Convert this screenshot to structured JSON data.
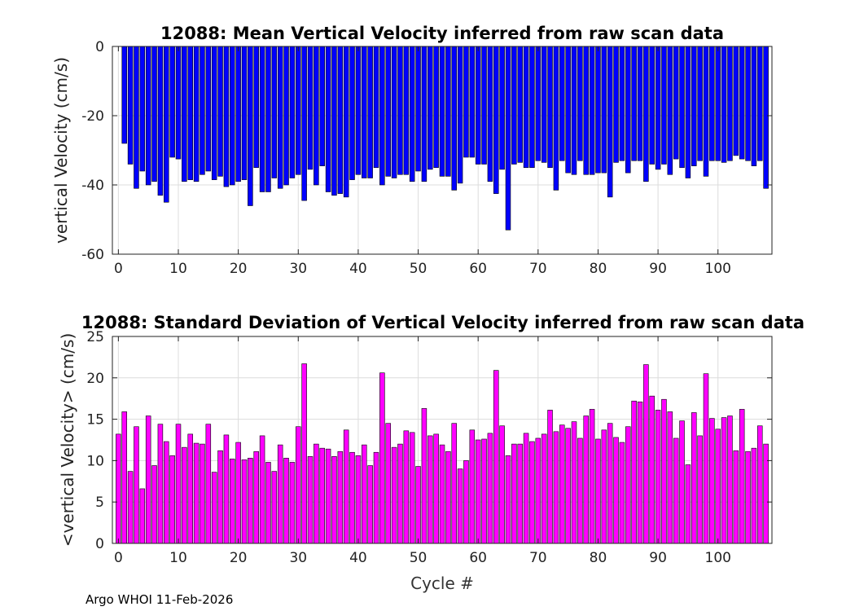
{
  "chart_data": [
    {
      "type": "bar",
      "title": "12088: Mean Vertical Velocity inferred from raw scan data",
      "xlabel": "",
      "ylabel": "vertical Velocity (cm/s)",
      "xlim": [
        -1,
        109
      ],
      "ylim": [
        -60,
        0
      ],
      "xticks": [
        0,
        10,
        20,
        30,
        40,
        50,
        60,
        70,
        80,
        90,
        100
      ],
      "yticks": [
        0,
        -20,
        -40,
        -60
      ],
      "grid": true,
      "color": "#0000ff",
      "x": [
        1,
        2,
        3,
        4,
        5,
        6,
        7,
        8,
        9,
        10,
        11,
        12,
        13,
        14,
        15,
        16,
        17,
        18,
        19,
        20,
        21,
        22,
        23,
        24,
        25,
        26,
        27,
        28,
        29,
        30,
        31,
        32,
        33,
        34,
        35,
        36,
        37,
        38,
        39,
        40,
        41,
        42,
        43,
        44,
        45,
        46,
        47,
        48,
        49,
        50,
        51,
        52,
        53,
        54,
        55,
        56,
        57,
        58,
        59,
        60,
        61,
        62,
        63,
        64,
        65,
        66,
        67,
        68,
        69,
        70,
        71,
        72,
        73,
        74,
        75,
        76,
        77,
        78,
        79,
        80,
        81,
        82,
        83,
        84,
        85,
        86,
        87,
        88,
        89,
        90,
        91,
        92,
        93,
        94,
        95,
        96,
        97,
        98,
        99,
        100,
        101,
        102,
        103,
        104,
        105,
        106,
        107,
        108
      ],
      "values": [
        -28,
        -34,
        -41,
        -36,
        -40,
        -39,
        -43,
        -45,
        -32,
        -32.5,
        -39,
        -38.5,
        -39,
        -37,
        -36,
        -38.5,
        -37.5,
        -40.5,
        -40,
        -39,
        -38.5,
        -46,
        -35,
        -42,
        -42,
        -38,
        -41,
        -40,
        -38,
        -37,
        -44.5,
        -35.5,
        -40,
        -34.5,
        -42,
        -43,
        -42.5,
        -43.5,
        -38.5,
        -37,
        -38,
        -38,
        -35,
        -40,
        -37.5,
        -38,
        -37,
        -37,
        -39,
        -36,
        -39,
        -35.5,
        -35,
        -37.5,
        -37.5,
        -41.5,
        -39.5,
        -32,
        -32,
        -34,
        -34,
        -39,
        -42.5,
        -35.5,
        -53,
        -34,
        -33.5,
        -35,
        -35,
        -33,
        -33.5,
        -35,
        -41.5,
        -33,
        -36.5,
        -37,
        -33,
        -37,
        -37,
        -36.5,
        -36.5,
        -43.5,
        -33.5,
        -33,
        -36.5,
        -33,
        -33,
        -39,
        -34,
        -35.5,
        -34,
        -37,
        -32.5,
        -35,
        -38,
        -34.5,
        -33,
        -37.5,
        -33,
        -33,
        -33.5,
        -33,
        -31.5,
        -32.5,
        -33,
        -34.5,
        -33,
        -41
      ]
    },
    {
      "type": "bar",
      "title": "12088: Standard Deviation of Vertical Velocity inferred from raw scan data",
      "xlabel": "Cycle #",
      "ylabel": "<vertical Velocity> (cm/s)",
      "xlim": [
        -1,
        109
      ],
      "ylim": [
        0,
        25
      ],
      "xticks": [
        0,
        10,
        20,
        30,
        40,
        50,
        60,
        70,
        80,
        90,
        100
      ],
      "yticks": [
        0,
        5,
        10,
        15,
        20,
        25
      ],
      "grid": true,
      "color": "#ff00ff",
      "x": [
        0,
        1,
        2,
        3,
        4,
        5,
        6,
        7,
        8,
        9,
        10,
        11,
        12,
        13,
        14,
        15,
        16,
        17,
        18,
        19,
        20,
        21,
        22,
        23,
        24,
        25,
        26,
        27,
        28,
        29,
        30,
        31,
        32,
        33,
        34,
        35,
        36,
        37,
        38,
        39,
        40,
        41,
        42,
        43,
        44,
        45,
        46,
        47,
        48,
        49,
        50,
        51,
        52,
        53,
        54,
        55,
        56,
        57,
        58,
        59,
        60,
        61,
        62,
        63,
        64,
        65,
        66,
        67,
        68,
        69,
        70,
        71,
        72,
        73,
        74,
        75,
        76,
        77,
        78,
        79,
        80,
        81,
        82,
        83,
        84,
        85,
        86,
        87,
        88,
        89,
        90,
        91,
        92,
        93,
        94,
        95,
        96,
        97,
        98,
        99,
        100,
        101,
        102,
        103,
        104,
        105,
        106,
        107,
        108
      ],
      "values": [
        13.2,
        15.9,
        8.7,
        14.1,
        6.6,
        15.4,
        9.4,
        14.4,
        12.3,
        10.6,
        14.4,
        11.6,
        13.2,
        12.1,
        12.0,
        14.4,
        8.6,
        11.2,
        13.1,
        10.2,
        12.2,
        10.1,
        10.3,
        11.1,
        13.0,
        9.8,
        8.7,
        11.9,
        10.3,
        9.8,
        14.1,
        21.7,
        10.5,
        12.0,
        11.5,
        11.4,
        10.5,
        11.1,
        13.7,
        11.0,
        10.6,
        11.9,
        9.4,
        11.0,
        20.6,
        14.5,
        11.6,
        12.0,
        13.6,
        13.4,
        9.3,
        16.3,
        13.0,
        13.2,
        11.9,
        11.1,
        14.5,
        9.0,
        10.0,
        13.7,
        12.5,
        12.6,
        13.3,
        20.9,
        14.2,
        10.6,
        12.0,
        12.0,
        13.3,
        12.3,
        12.7,
        13.2,
        16.1,
        13.5,
        14.3,
        13.9,
        14.7,
        12.7,
        15.4,
        16.2,
        12.6,
        13.7,
        14.5,
        12.8,
        12.2,
        14.1,
        17.2,
        17.1,
        21.6,
        17.8,
        16.1,
        17.4,
        15.9,
        12.7,
        14.8,
        9.5,
        15.8,
        13.0,
        20.5,
        15.1,
        13.8,
        15.2,
        15.4,
        11.2,
        16.2,
        11.1,
        11.5,
        14.2,
        12.0
      ]
    }
  ],
  "footer": "Argo WHOI 11-Feb-2026"
}
